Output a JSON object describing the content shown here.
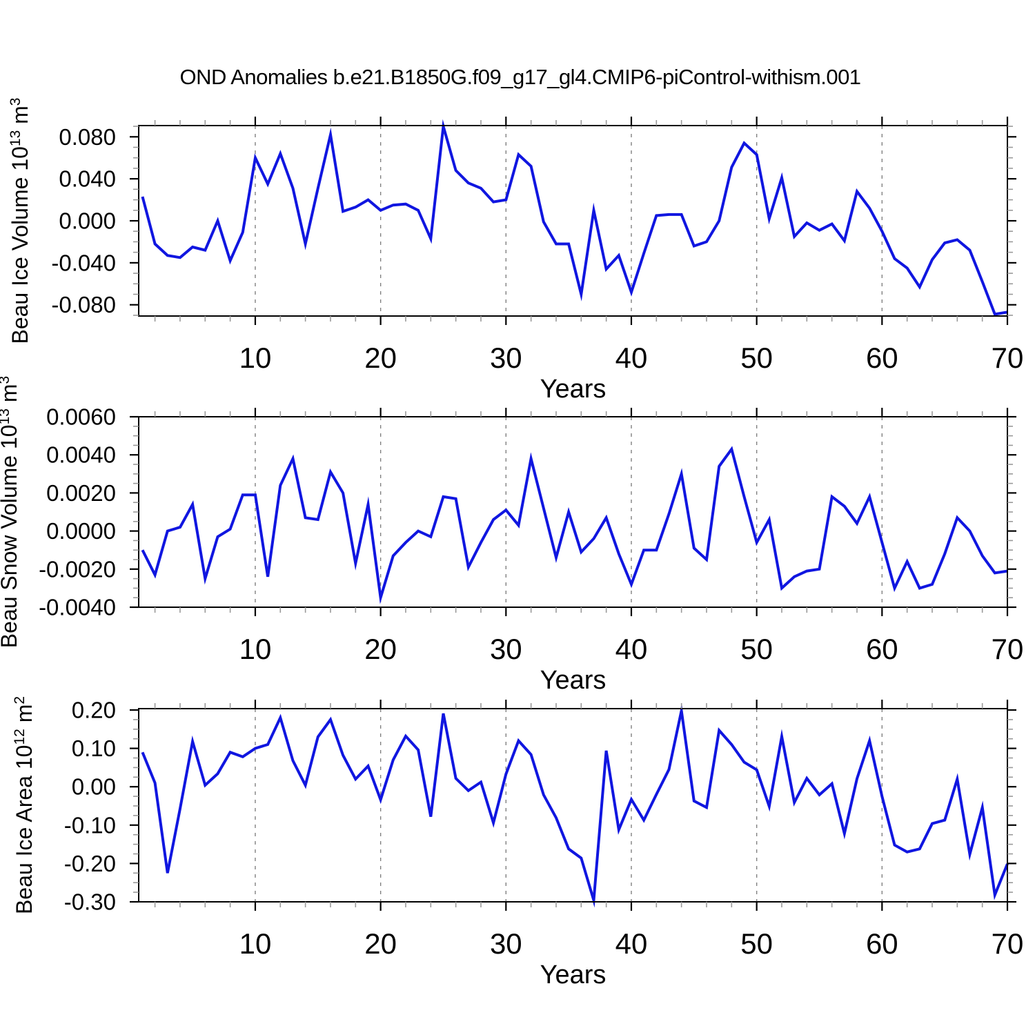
{
  "title": "OND Anomalies b.e21.B1850G.f09_g17_gl4.CMIP6-piControl-withism.001",
  "colors": {
    "line": "#1016e0",
    "axis": "#000000",
    "minor_tick": "#9a9a9a",
    "grid": "#808080",
    "background": "#ffffff"
  },
  "chart_data": [
    {
      "type": "line",
      "name": "beau-ice-volume",
      "ylabel_parts": [
        {
          "t": "Beau Ice Volume 10"
        },
        {
          "t": "13",
          "sup": true
        },
        {
          "t": " m"
        },
        {
          "t": "3",
          "sup": true
        }
      ],
      "ylabel_plain": "Beau Ice Volume 10^13 m^3",
      "xlabel": "Years",
      "x_description": "years 1..70 step 1",
      "x_start": 1,
      "x_end": 70,
      "xlim": [
        0.7,
        70
      ],
      "ylim": [
        -0.0907,
        0.0907
      ],
      "yticks": [
        -0.08,
        -0.04,
        0.0,
        0.04,
        0.08
      ],
      "ytick_labels": [
        "-0.080",
        "-0.040",
        "0.000",
        "0.040",
        "0.080"
      ],
      "yminor_step": 0.01,
      "xticks": [
        10,
        20,
        30,
        40,
        50,
        60,
        70
      ],
      "xtick_labels": [
        "10",
        "20",
        "30",
        "40",
        "50",
        "60",
        "70"
      ],
      "xminor_step": 2,
      "gridlines_x": [
        10,
        20,
        30,
        40,
        50,
        60
      ],
      "grid_dashed": true,
      "legend": "none",
      "values": [
        0.023,
        -0.022,
        -0.033,
        -0.035,
        -0.025,
        -0.028,
        0.0,
        -0.038,
        -0.011,
        0.06,
        0.035,
        0.064,
        0.031,
        -0.022,
        0.031,
        0.082,
        0.009,
        0.013,
        0.02,
        0.01,
        0.015,
        0.016,
        0.01,
        -0.017,
        0.09,
        0.048,
        0.036,
        0.031,
        0.018,
        0.02,
        0.063,
        0.052,
        -0.001,
        -0.022,
        -0.022,
        -0.07,
        0.01,
        -0.046,
        -0.033,
        -0.068,
        -0.031,
        0.005,
        0.006,
        0.006,
        -0.024,
        -0.02,
        0.0,
        0.051,
        0.074,
        0.063,
        0.002,
        0.041,
        -0.015,
        -0.002,
        -0.009,
        -0.003,
        -0.019,
        0.028,
        0.012,
        -0.01,
        -0.036,
        -0.045,
        -0.063,
        -0.037,
        -0.021,
        -0.018,
        -0.028,
        -0.058,
        -0.089,
        -0.087
      ]
    },
    {
      "type": "line",
      "name": "beau-snow-volume",
      "ylabel_parts": [
        {
          "t": "Beau Snow Volume 10"
        },
        {
          "t": "13",
          "sup": true
        },
        {
          "t": " m"
        },
        {
          "t": "3",
          "sup": true
        }
      ],
      "ylabel_plain": "Beau Snow Volume 10^13 m^3",
      "xlabel": "Years",
      "x_description": "years 1..70 step 1",
      "x_start": 1,
      "x_end": 70,
      "xlim": [
        0.7,
        70
      ],
      "ylim": [
        -0.004,
        0.006
      ],
      "yticks": [
        -0.004,
        -0.002,
        0.0,
        0.002,
        0.004,
        0.006
      ],
      "ytick_labels": [
        "-0.0040",
        "-0.0020",
        "0.0000",
        "0.0020",
        "0.0040",
        "0.0060"
      ],
      "yminor_step": 0.0005,
      "xticks": [
        10,
        20,
        30,
        40,
        50,
        60,
        70
      ],
      "xtick_labels": [
        "10",
        "20",
        "30",
        "40",
        "50",
        "60",
        "70"
      ],
      "xminor_step": 2,
      "gridlines_x": [
        10,
        20,
        30,
        40,
        50,
        60
      ],
      "grid_dashed": true,
      "legend": "none",
      "values": [
        -0.001,
        -0.0023,
        0.0,
        0.0002,
        0.0014,
        -0.0025,
        -0.0003,
        0.0001,
        0.0019,
        0.0019,
        -0.0024,
        0.0024,
        0.0038,
        0.0007,
        0.0006,
        0.0031,
        0.002,
        -0.0017,
        0.0014,
        -0.0035,
        -0.0013,
        -0.0006,
        0.0,
        -0.0003,
        0.0018,
        0.0017,
        -0.0019,
        -0.0006,
        0.0006,
        0.0011,
        0.0003,
        0.0038,
        0.0012,
        -0.0014,
        0.001,
        -0.0011,
        -0.0004,
        0.0007,
        -0.0012,
        -0.0028,
        -0.001,
        -0.001,
        0.0009,
        0.003,
        -0.0009,
        -0.0015,
        0.0034,
        0.0043,
        0.0018,
        -0.0006,
        0.0006,
        -0.003,
        -0.0024,
        -0.0021,
        -0.002,
        0.0018,
        0.0013,
        0.0004,
        0.0018,
        -0.0006,
        -0.003,
        -0.0016,
        -0.003,
        -0.0028,
        -0.0012,
        0.0007,
        0.0,
        -0.0013,
        -0.0022,
        -0.0021
      ]
    },
    {
      "type": "line",
      "name": "beau-ice-area",
      "ylabel_parts": [
        {
          "t": "Beau Ice Area 10"
        },
        {
          "t": "12",
          "sup": true
        },
        {
          "t": " m"
        },
        {
          "t": "2",
          "sup": true
        }
      ],
      "ylabel_plain": "Beau Ice Area 10^12 m^2",
      "xlabel": "Years",
      "x_description": "years 1..70 step 1",
      "x_start": 1,
      "x_end": 70,
      "xlim": [
        0.7,
        70
      ],
      "ylim": [
        -0.3,
        0.2036
      ],
      "yticks": [
        -0.3,
        -0.2,
        -0.1,
        0.0,
        0.1,
        0.2
      ],
      "ytick_labels": [
        "-0.30",
        "-0.20",
        "-0.10",
        "0.00",
        "0.10",
        "0.20"
      ],
      "yminor_step": 0.025,
      "xticks": [
        10,
        20,
        30,
        40,
        50,
        60,
        70
      ],
      "xtick_labels": [
        "10",
        "20",
        "30",
        "40",
        "50",
        "60",
        "70"
      ],
      "xminor_step": 2,
      "gridlines_x": [
        10,
        20,
        30,
        40,
        50,
        60
      ],
      "grid_dashed": true,
      "legend": "none",
      "values": [
        0.09,
        0.01,
        -0.225,
        -0.057,
        0.118,
        0.004,
        0.034,
        0.09,
        0.078,
        0.1,
        0.11,
        0.18,
        0.068,
        0.004,
        0.13,
        0.175,
        0.082,
        0.02,
        0.054,
        -0.034,
        0.07,
        0.132,
        0.096,
        -0.078,
        0.191,
        0.022,
        -0.01,
        0.012,
        -0.094,
        0.033,
        0.12,
        0.084,
        -0.021,
        -0.081,
        -0.162,
        -0.186,
        -0.296,
        0.094,
        -0.112,
        -0.033,
        -0.087,
        -0.02,
        0.045,
        0.198,
        -0.037,
        -0.054,
        0.147,
        0.11,
        0.064,
        0.044,
        -0.051,
        0.131,
        -0.041,
        0.022,
        -0.021,
        0.008,
        -0.122,
        0.021,
        0.12,
        -0.025,
        -0.152,
        -0.17,
        -0.162,
        -0.096,
        -0.087,
        0.02,
        -0.176,
        -0.054,
        -0.282,
        -0.201
      ]
    }
  ]
}
